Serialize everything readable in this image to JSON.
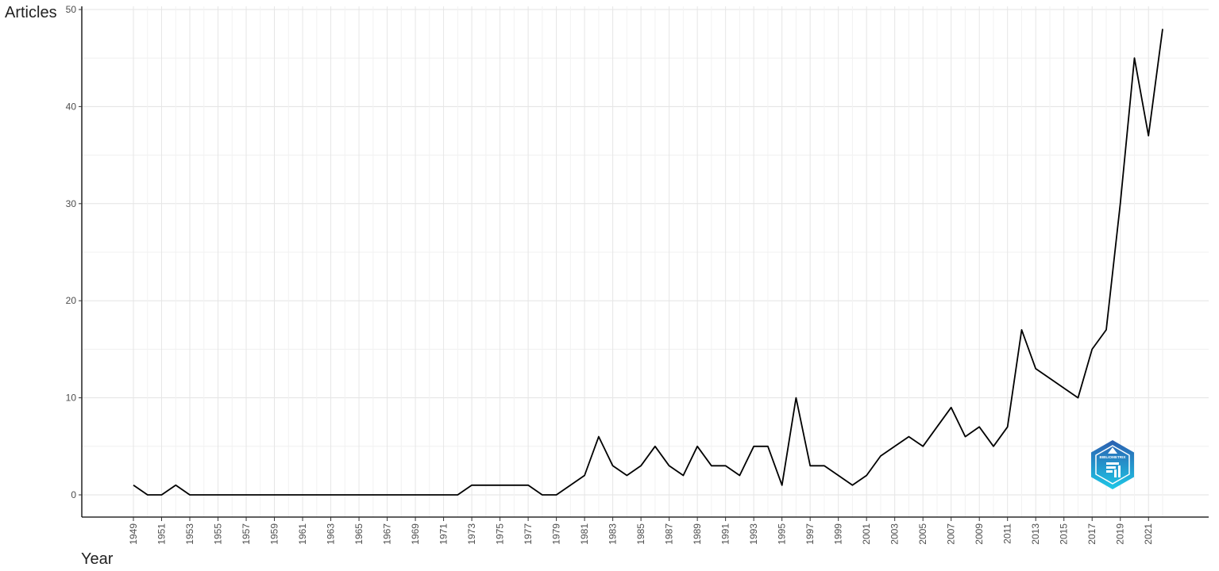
{
  "chart_data": {
    "type": "line",
    "ylabel": "Articles",
    "xlabel": "Year",
    "ylim": [
      0,
      50
    ],
    "xlim": [
      1949,
      2022
    ],
    "y_ticks": [
      0,
      10,
      20,
      30,
      40,
      50
    ],
    "x_tick_labels": [
      1949,
      1951,
      1953,
      1955,
      1957,
      1959,
      1961,
      1963,
      1965,
      1967,
      1969,
      1971,
      1973,
      1975,
      1977,
      1979,
      1981,
      1983,
      1985,
      1987,
      1989,
      1991,
      1993,
      1995,
      1997,
      1999,
      2001,
      2003,
      2005,
      2007,
      2009,
      2011,
      2013,
      2015,
      2017,
      2019,
      2021
    ],
    "grid": true,
    "line_color": "#000000",
    "series": [
      {
        "x": [
          1949,
          1950,
          1951,
          1952,
          1953,
          1954,
          1955,
          1956,
          1957,
          1958,
          1959,
          1960,
          1961,
          1962,
          1963,
          1964,
          1965,
          1966,
          1967,
          1968,
          1969,
          1970,
          1971,
          1972,
          1973,
          1974,
          1975,
          1976,
          1977,
          1978,
          1979,
          1980,
          1981,
          1982,
          1983,
          1984,
          1985,
          1986,
          1987,
          1988,
          1989,
          1990,
          1991,
          1992,
          1993,
          1994,
          1995,
          1996,
          1997,
          1998,
          1999,
          2000,
          2001,
          2002,
          2003,
          2004,
          2005,
          2006,
          2007,
          2008,
          2009,
          2010,
          2011,
          2012,
          2013,
          2014,
          2015,
          2016,
          2017,
          2018,
          2019,
          2020,
          2021,
          2022
        ],
        "values": [
          1,
          0,
          0,
          1,
          0,
          0,
          0,
          0,
          0,
          0,
          0,
          0,
          0,
          0,
          0,
          0,
          0,
          0,
          0,
          0,
          0,
          0,
          0,
          0,
          1,
          1,
          1,
          1,
          1,
          0,
          0,
          1,
          2,
          6,
          3,
          2,
          3,
          5,
          3,
          2,
          5,
          3,
          3,
          2,
          5,
          5,
          1,
          10,
          3,
          3,
          2,
          1,
          2,
          4,
          5,
          6,
          5,
          7,
          9,
          6,
          7,
          5,
          7,
          17,
          13,
          12,
          11,
          10,
          15,
          17,
          30,
          45,
          37,
          48
        ]
      }
    ]
  },
  "logo": {
    "text": "BIBLIOMETRIX",
    "color_top": "#2c5fb0",
    "color_bottom": "#1ec8e6"
  }
}
